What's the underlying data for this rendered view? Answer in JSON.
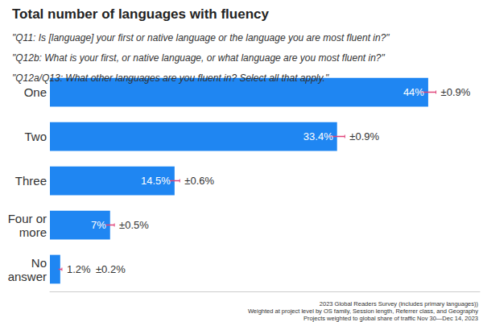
{
  "chart_data": {
    "type": "bar",
    "orientation": "horizontal",
    "title": "Total number of languages with fluency",
    "subtitle": [
      "\"Q11: Is [language] your first or native language or the language you are most fluent in?\"",
      "\"Q12b: What is your first, or native language, or what language are you most fluent in?\"",
      "\"Q12a/Q13: What other languages are you fluent in? Select all that apply.\""
    ],
    "categories": [
      "One",
      "Two",
      "Three",
      "Four or\nmore",
      "No\nanswer"
    ],
    "values": [
      44,
      33.4,
      14.5,
      7,
      1.2
    ],
    "value_labels": [
      "44%",
      "33.4%",
      "14.5%",
      "7%",
      "1.2%"
    ],
    "errors": [
      0.9,
      0.9,
      0.6,
      0.5,
      0.2
    ],
    "error_labels": [
      "±0.9%",
      "±0.9%",
      "±0.6%",
      "±0.5%",
      "±0.2%"
    ],
    "color": "#1f86f2",
    "xlim": [
      0,
      50
    ],
    "xticks": [],
    "grid": false,
    "data_labels": true,
    "tick_labels": "y",
    "notes": [
      "2023 Global Readers Survey (includes primary languages))",
      "Weighted at project level by OS family, Session length, Referrer class, and Geography",
      "Projects weighted to global share of traffic Nov 30—Dec 14, 2023"
    ]
  }
}
